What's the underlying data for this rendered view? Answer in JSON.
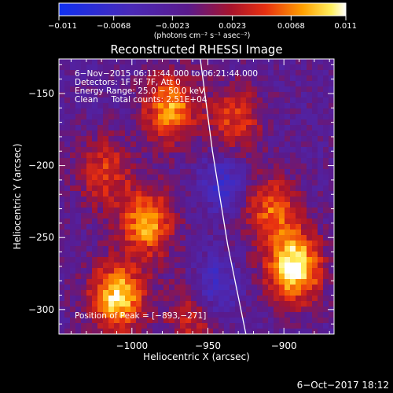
{
  "colorbar": {
    "ticks": [
      "−0.011",
      "−0.0068",
      "−0.0023",
      "0.0023",
      "0.0068",
      "0.011"
    ],
    "tick_values": [
      -0.011,
      -0.0068,
      -0.0023,
      0.0023,
      0.0068,
      0.011
    ],
    "range": [
      -0.011,
      0.011
    ],
    "unit": "(photons cm⁻² s⁻¹ asec⁻²)"
  },
  "chart_data": {
    "type": "heatmap",
    "title": "Reconstructed RHESSI Image",
    "xlabel": "Heliocentric X (arcsec)",
    "ylabel": "Heliocentric Y (arcsec)",
    "xlim": [
      -1048,
      -867
    ],
    "ylim": [
      -317,
      -126
    ],
    "x_ticks": [
      -1000,
      -950,
      -900
    ],
    "x_tick_labels": [
      "−1000",
      "−950",
      "−900"
    ],
    "y_ticks": [
      -300,
      -250,
      -200,
      -150
    ],
    "y_tick_labels": [
      "−300",
      "−250",
      "−200",
      "−150"
    ],
    "colormap": "blue-purple-red-yellow-white",
    "colors": {
      "min": "#1030f0",
      "mid": "#5a1a8c",
      "max": "#ffffff"
    },
    "hot_spots": [
      {
        "x": -975,
        "y": -160,
        "intensity": 0.75
      },
      {
        "x": -1018,
        "y": -205,
        "intensity": 0.5
      },
      {
        "x": -990,
        "y": -240,
        "intensity": 0.75
      },
      {
        "x": -1010,
        "y": -292,
        "intensity": 0.9
      },
      {
        "x": -893,
        "y": -271,
        "intensity": 1.0
      },
      {
        "x": -908,
        "y": -232,
        "intensity": 0.6
      },
      {
        "x": -932,
        "y": -168,
        "intensity": 0.5
      },
      {
        "x": -960,
        "y": -305,
        "intensity": 0.4
      }
    ],
    "cold_spots": [
      {
        "x": -940,
        "y": -212,
        "intensity": 0.6
      },
      {
        "x": -945,
        "y": -285,
        "intensity": 0.65
      }
    ],
    "limb_curve": [
      {
        "x": -955,
        "y": -126
      },
      {
        "x": -947,
        "y": -190
      },
      {
        "x": -937,
        "y": -255
      },
      {
        "x": -925,
        "y": -317
      }
    ],
    "annotations": {
      "time": "6−Nov−2015 06:11:44.000 to 06:21:44.000",
      "detectors": "Detectors: 1F 5F 7F, Att 0",
      "energy": "Energy Range: 25.0 − 50.0 keV",
      "method": "Clean     Total counts: 2.51E+04",
      "peak": "Position of Peak = [−893,−271]"
    }
  },
  "footer": {
    "date": "6−Oct−2017 18:12"
  }
}
